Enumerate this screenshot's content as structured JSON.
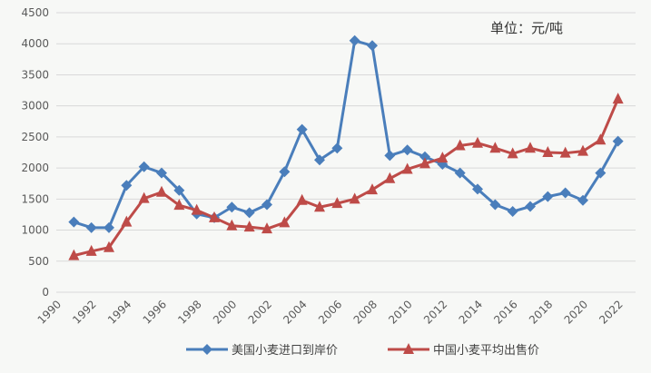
{
  "chart_data": {
    "type": "line",
    "unit_label": "单位：元/吨",
    "ylim": [
      0,
      4500
    ],
    "yticks": [
      0,
      500,
      1000,
      1500,
      2000,
      2500,
      3000,
      3500,
      4000,
      4500
    ],
    "xticks": [
      "1990",
      "1992",
      "1994",
      "1996",
      "1998",
      "2000",
      "2002",
      "2004",
      "2006",
      "2008",
      "2010",
      "2012",
      "2014",
      "2016",
      "2018",
      "2020",
      "2022"
    ],
    "x": [
      1991,
      1992,
      1993,
      1994,
      1995,
      1996,
      1997,
      1998,
      1999,
      2000,
      2001,
      2002,
      2003,
      2004,
      2005,
      2006,
      2007,
      2008,
      2009,
      2010,
      2011,
      2012,
      2013,
      2014,
      2015,
      2016,
      2017,
      2018,
      2019,
      2020,
      2021,
      2022
    ],
    "grid": true,
    "legend": "bottom",
    "series": [
      {
        "name": "美国小麦进口到岸价",
        "color": "#4a7ebb",
        "marker": "diamond",
        "values": [
          1130,
          1040,
          1040,
          1720,
          2020,
          1920,
          1640,
          1260,
          1200,
          1370,
          1280,
          1410,
          1940,
          2620,
          2130,
          2320,
          4050,
          3970,
          2200,
          2290,
          2180,
          2060,
          1920,
          1660,
          1410,
          1300,
          1380,
          1540,
          1600,
          1480,
          1920,
          2430
        ]
      },
      {
        "name": "中国小麦平均出售价",
        "color": "#be4b48",
        "marker": "triangle",
        "values": [
          590,
          660,
          720,
          1130,
          1510,
          1610,
          1400,
          1320,
          1200,
          1070,
          1050,
          1020,
          1120,
          1480,
          1370,
          1430,
          1500,
          1650,
          1830,
          1980,
          2070,
          2160,
          2360,
          2400,
          2320,
          2230,
          2320,
          2250,
          2240,
          2270,
          2450,
          3110
        ]
      }
    ]
  }
}
